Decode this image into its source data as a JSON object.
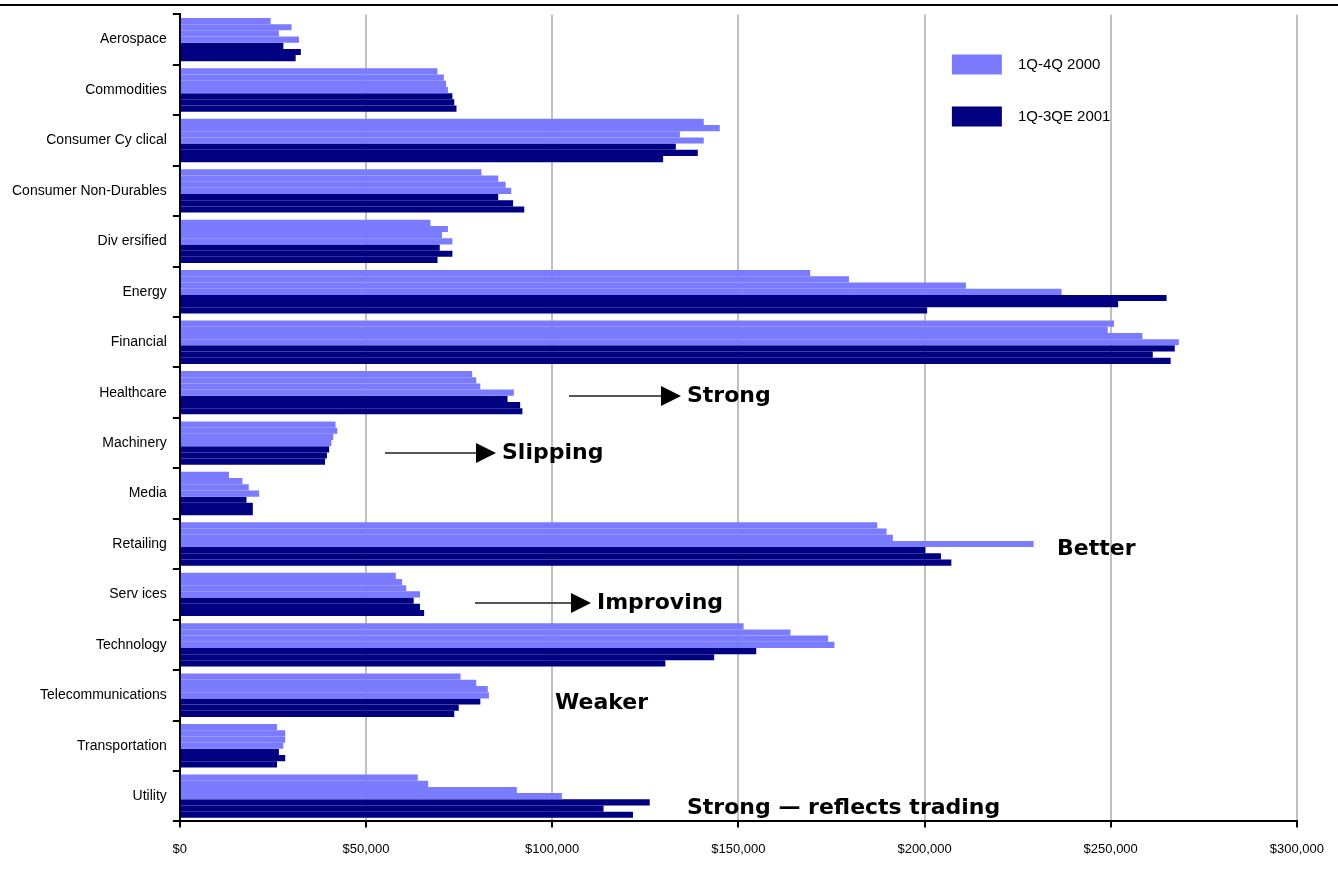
{
  "chart_data": {
    "type": "bar",
    "orientation": "horizontal",
    "categories": [
      "Aerospace",
      "Commodities",
      "Consumer Cy clical",
      "Consumer Non-Durables",
      "Div ersified",
      "Energy",
      "Financial",
      "Healthcare",
      "Machinery",
      "Media",
      "Retailing",
      "Serv ices",
      "Technology",
      "Telecommunications",
      "Transportation",
      "Utility"
    ],
    "series": [
      {
        "name": "1Q-4Q 2000",
        "color": "#7b7bff",
        "values": [
          24400,
          69200,
          140700,
          81000,
          67300,
          169300,
          250900,
          78500,
          41800,
          13200,
          187300,
          58000,
          151400,
          75400,
          26100,
          63900
        ]
      },
      {
        "color": "#7b7bff",
        "values": [
          30000,
          70900,
          145000,
          85500,
          72000,
          179700,
          249200,
          79600,
          42300,
          16800,
          189800,
          59700,
          164000,
          79600,
          28300,
          66700
        ]
      },
      {
        "color": "#7b7bff",
        "values": [
          26600,
          71500,
          134300,
          87500,
          70400,
          211100,
          258500,
          80700,
          41200,
          18500,
          191500,
          60800,
          174100,
          82700,
          28300,
          90500
        ]
      },
      {
        "color": "#7b7bff",
        "values": [
          32000,
          72000,
          140700,
          89000,
          73200,
          236800,
          268300,
          89700,
          40700,
          21300,
          229300,
          64500,
          175800,
          83000,
          27800,
          102600
        ]
      },
      {
        "name": "1Q-3QE 2001",
        "color": "#000080",
        "values": [
          27800,
          73200,
          133200,
          85500,
          69800,
          265000,
          267200,
          88000,
          40100,
          17900,
          200200,
          62800,
          154800,
          80700,
          26600,
          126200
        ]
      },
      {
        "color": "#000080",
        "values": [
          32500,
          73700,
          139100,
          89500,
          73200,
          252000,
          261300,
          91400,
          39500,
          19600,
          204400,
          64500,
          143500,
          74900,
          28300,
          113800
        ]
      },
      {
        "color": "#000080",
        "values": [
          31100,
          74300,
          129800,
          92500,
          69200,
          200700,
          266100,
          92000,
          39000,
          19600,
          207200,
          65600,
          130400,
          73700,
          26100,
          121700
        ]
      }
    ],
    "xlim": [
      0,
      300000
    ],
    "xticks": [
      {
        "value": 0,
        "label": "$0"
      },
      {
        "value": 50000,
        "label": "$50,000"
      },
      {
        "value": 100000,
        "label": "$100,000"
      },
      {
        "value": 150000,
        "label": "$150,000"
      },
      {
        "value": 200000,
        "label": "$200,000"
      },
      {
        "value": 250000,
        "label": "$250,000"
      },
      {
        "value": 300000,
        "label": "$300,000"
      }
    ],
    "grid": "x",
    "legend": "top right",
    "annotations": [
      "Strong",
      "Slipping",
      "Better",
      "Improving",
      "Weaker",
      "Strong — reflects trading"
    ]
  }
}
